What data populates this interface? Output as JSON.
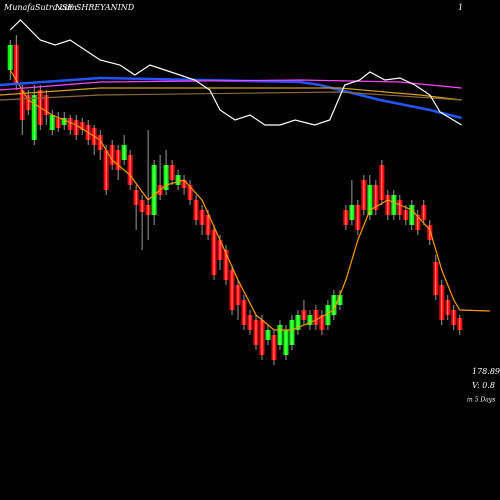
{
  "chart_data": {
    "type": "candlestick",
    "site": "MunafaSutra.com",
    "title": "NSE SHREYANIND",
    "corner_label": "1",
    "price_label": "178.89",
    "volume_label": "V: 0.8",
    "period_label": "in 5 Days",
    "xlim": [
      -1.7,
      81.7
    ],
    "ylim": [
      160,
      210
    ],
    "up_color": "#00ff00",
    "down_color": "#ff0000",
    "wick_color": "#ffffff",
    "open": [
      203.0,
      205.5,
      201.0,
      200.5,
      196.0,
      201.0,
      200.5,
      197.0,
      198.2,
      197.5,
      198.2,
      198.0,
      197.8,
      197.5,
      197.2,
      196.5,
      195.0,
      195.5,
      195.0,
      194.0,
      194.5,
      191.0,
      190.0,
      189.5,
      188.5,
      191.5,
      191.0,
      193.5,
      191.5,
      192.0,
      191.5,
      190.0,
      189.0,
      188.5,
      187.0,
      186.0,
      185.0,
      183.0,
      181.5,
      180.0,
      178.5,
      178.0,
      178.0,
      176.0,
      176.5,
      175.5,
      174.5,
      175.5,
      177.0,
      179.0,
      177.5,
      179.0,
      178.5,
      177.5,
      178.5,
      179.5,
      189.0,
      188.0,
      189.5,
      192.0,
      188.5,
      191.5,
      193.5,
      190.5,
      188.5,
      190.0,
      189.0,
      187.5,
      188.5,
      189.5,
      187.5,
      183.8,
      181.5,
      180.0,
      179.0,
      178.2
    ],
    "high": [
      206.0,
      206.5,
      201.5,
      201.0,
      201.5,
      201.5,
      201.0,
      199.0,
      198.8,
      198.8,
      198.5,
      198.5,
      198.2,
      198.0,
      197.5,
      197.0,
      195.5,
      196.0,
      195.5,
      196.5,
      195.0,
      191.5,
      190.5,
      197.0,
      194.0,
      194.5,
      195.0,
      194.0,
      193.0,
      192.5,
      192.0,
      190.5,
      189.5,
      189.0,
      187.5,
      186.5,
      185.5,
      183.5,
      182.0,
      180.5,
      179.0,
      178.5,
      178.5,
      177.5,
      177.0,
      178.0,
      177.5,
      178.5,
      179.0,
      180.0,
      179.0,
      179.5,
      179.0,
      180.0,
      181.0,
      181.0,
      189.5,
      192.0,
      190.0,
      192.5,
      192.5,
      192.0,
      194.0,
      191.0,
      191.0,
      190.5,
      189.5,
      190.0,
      189.0,
      190.0,
      188.0,
      184.5,
      182.0,
      180.5,
      179.5,
      178.5
    ],
    "low": [
      202.0,
      201.0,
      196.5,
      198.5,
      195.5,
      197.0,
      197.5,
      196.5,
      196.8,
      197.0,
      196.5,
      196.0,
      196.5,
      195.5,
      194.5,
      194.0,
      190.5,
      193.0,
      192.0,
      193.5,
      191.0,
      187.0,
      185.0,
      186.0,
      187.5,
      190.0,
      190.5,
      191.5,
      191.0,
      190.5,
      189.5,
      187.5,
      186.5,
      186.0,
      182.0,
      183.0,
      181.5,
      178.5,
      178.0,
      177.0,
      176.5,
      175.0,
      174.0,
      175.5,
      173.5,
      175.0,
      174.0,
      175.0,
      176.5,
      177.5,
      177.0,
      177.0,
      176.5,
      177.0,
      178.0,
      179.0,
      187.0,
      187.5,
      186.5,
      188.5,
      188.0,
      188.5,
      189.5,
      188.0,
      188.0,
      188.0,
      187.5,
      187.0,
      186.5,
      187.5,
      185.5,
      180.0,
      177.5,
      178.0,
      177.0,
      176.5
    ],
    "close": [
      205.5,
      201.5,
      198.0,
      199.0,
      200.5,
      197.5,
      198.5,
      198.5,
      197.2,
      198.2,
      197.0,
      196.5,
      197.0,
      196.0,
      195.5,
      195.0,
      191.0,
      193.5,
      193.0,
      195.5,
      191.5,
      189.5,
      188.8,
      188.5,
      193.5,
      190.5,
      193.5,
      192.0,
      192.5,
      191.2,
      190.0,
      188.0,
      187.5,
      186.5,
      182.5,
      184.0,
      182.0,
      179.0,
      179.5,
      177.5,
      177.0,
      175.5,
      174.5,
      177.0,
      174.0,
      177.5,
      177.0,
      178.0,
      178.5,
      178.0,
      178.5,
      177.5,
      177.0,
      179.5,
      180.5,
      180.5,
      187.5,
      189.5,
      187.0,
      189.0,
      191.5,
      189.0,
      190.0,
      188.5,
      190.5,
      188.5,
      188.0,
      189.5,
      187.0,
      188.0,
      186.0,
      180.5,
      178.0,
      178.5,
      177.5,
      177.0
    ],
    "lines": [
      {
        "color": "#ffffff",
        "x": [
          0,
          1.7,
          5,
          7.5,
          10,
          12.5,
          15,
          18.3,
          20.8,
          23.3,
          25.8,
          28.3,
          30.8,
          33.3,
          35,
          37.5,
          40,
          42.5,
          45,
          47.5,
          50.8,
          53.3,
          55.8,
          58.3,
          60,
          62.5,
          65,
          67.5,
          70,
          71.7,
          75.3
        ],
        "values": [
          207,
          208,
          206,
          205.5,
          206,
          205,
          204,
          203.5,
          202.5,
          203.5,
          203,
          202.5,
          202,
          201,
          199,
          198,
          198.5,
          197.5,
          197.5,
          198,
          197.5,
          198,
          201.5,
          202,
          202.8,
          202,
          202.2,
          201.5,
          200.5,
          198.8,
          197.5
        ]
      },
      {
        "color": "#8b6a3a",
        "x": [
          -1.7,
          15,
          55,
          75.3
        ],
        "values": [
          200,
          200.5,
          200.8,
          200
        ]
      },
      {
        "color": "#d4a017",
        "x": [
          -1.7,
          15,
          55,
          68.3,
          75.3
        ],
        "values": [
          200.5,
          201.2,
          201.2,
          200.5,
          200
        ]
      },
      {
        "color": "#ff44ff",
        "x": [
          -1.7,
          15,
          48.3,
          65,
          75.3
        ],
        "values": [
          201,
          201.8,
          202,
          201.8,
          201.2
        ]
      },
      {
        "color": "#2255ff",
        "x": [
          -1.7,
          15,
          48.3,
          51.7,
          61.7,
          70,
          75.3
        ],
        "values": [
          201.5,
          202.2,
          201.8,
          201.5,
          200,
          199,
          198.2
        ]
      },
      {
        "color": "#ff9900",
        "x": [
          0,
          3,
          7,
          11,
          15,
          17,
          20,
          23,
          26,
          29,
          32,
          35,
          38,
          41,
          44,
          47,
          51,
          54,
          56,
          58,
          60,
          63,
          67,
          70,
          72,
          74,
          75,
          80
        ],
        "values": [
          203,
          200,
          198.5,
          197.5,
          196,
          194,
          192.5,
          190,
          191.5,
          192,
          190,
          186,
          182,
          178.5,
          177,
          177,
          178,
          179,
          182,
          186,
          189,
          190,
          189,
          187,
          183,
          180,
          179,
          178.9
        ]
      }
    ]
  }
}
